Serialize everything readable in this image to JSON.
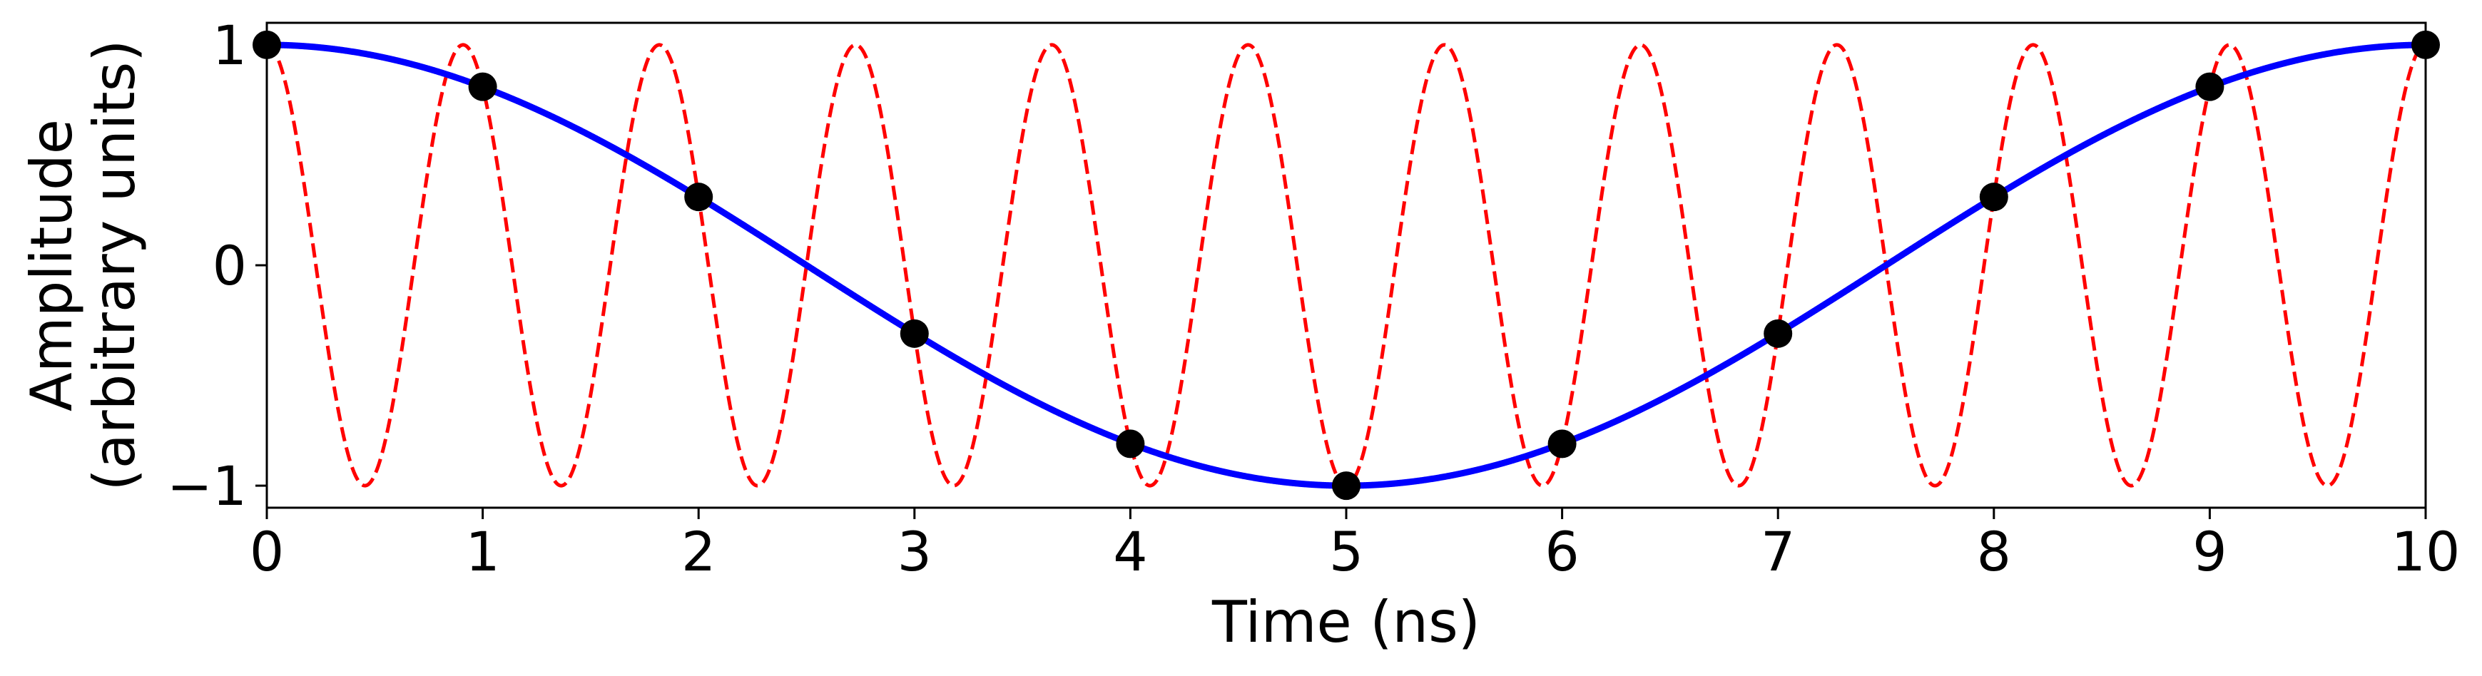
{
  "chart_data": {
    "type": "line",
    "title": "",
    "xlabel": "Time (ns)",
    "ylabel_line1": "Amplitude",
    "ylabel_line2": "(arbitrary units)",
    "xlim": [
      0,
      10
    ],
    "ylim": [
      -1.1,
      1.1
    ],
    "xticks": [
      0,
      1,
      2,
      3,
      4,
      5,
      6,
      7,
      8,
      9,
      10
    ],
    "xtick_labels": [
      "0",
      "1",
      "2",
      "3",
      "4",
      "5",
      "6",
      "7",
      "8",
      "9",
      "10"
    ],
    "yticks": [
      1,
      0,
      -1
    ],
    "ytick_labels": [
      "1",
      "0",
      "−1"
    ],
    "grid": false,
    "legend": "none",
    "series": [
      {
        "style": "solid",
        "color": "#0000ff",
        "function": "cos(2*pi*0.1*t)",
        "frequency_ghz": 0.1
      },
      {
        "style": "dashed",
        "color": "#ff0000",
        "function": "cos(2*pi*1.1*t)",
        "frequency_ghz": 1.1
      }
    ],
    "samples": {
      "color": "#000000",
      "x": [
        0,
        1,
        2,
        3,
        4,
        5,
        6,
        7,
        8,
        9,
        10
      ],
      "y": [
        1.0,
        0.81,
        0.31,
        -0.31,
        -0.81,
        -1.0,
        -0.81,
        -0.31,
        0.31,
        0.81,
        1.0
      ]
    }
  }
}
